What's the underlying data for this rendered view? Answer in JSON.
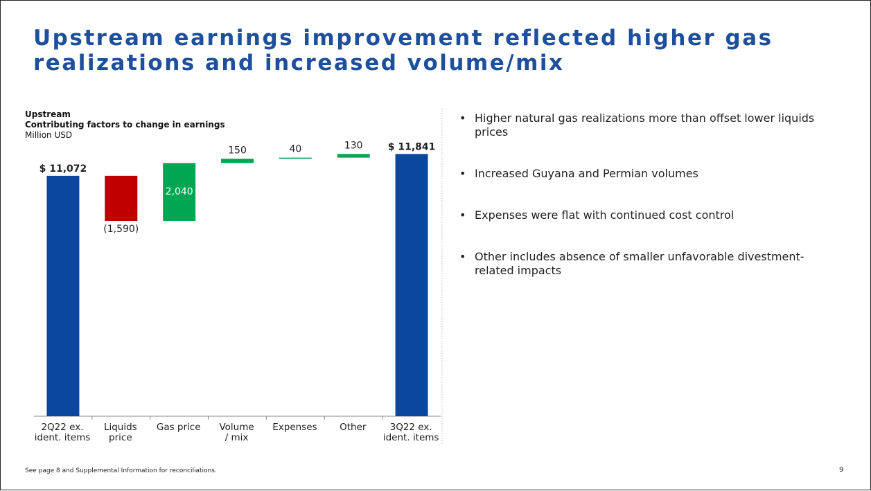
{
  "title": "Upstream earnings improvement reflected higher gas realizations and increased volume/mix",
  "chart_data": {
    "type": "waterfall",
    "title": "Upstream",
    "subtitle": "Contributing factors to change in earnings",
    "unit_label": "Million USD",
    "categories": [
      "2Q22 ex.\nident. items",
      "Liquids\nprice",
      "Gas price",
      "Volume\n/ mix",
      "Expenses",
      "Other",
      "3Q22 ex.\nident. items"
    ],
    "values": [
      11072,
      -1590,
      2040,
      150,
      40,
      130,
      11841
    ],
    "value_labels": [
      "$ 11,072",
      "(1,590)",
      "2,040",
      "150",
      "40",
      "130",
      "$ 11,841"
    ],
    "measure": [
      "total",
      "relative",
      "relative",
      "relative",
      "relative",
      "relative",
      "total"
    ],
    "colors": {
      "total": "#0b479e",
      "increase": "#00a651",
      "decrease": "#c00000"
    },
    "ylim": [
      2600,
      12850
    ]
  },
  "bullets": [
    "Higher natural gas realizations more than offset lower liquids prices",
    "Increased Guyana and Permian volumes",
    "Expenses were flat with continued cost control",
    "Other includes absence of smaller unfavorable divestment-related impacts"
  ],
  "footnote": "See page 8 and Supplemental Information for reconciliations.",
  "page_number": "9"
}
